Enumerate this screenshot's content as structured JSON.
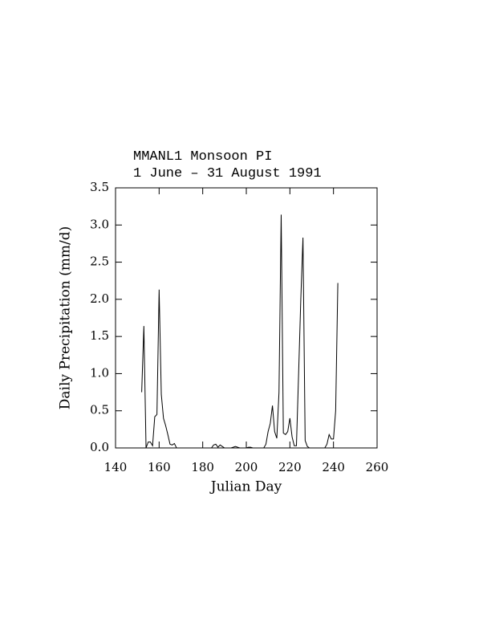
{
  "chart_data": {
    "type": "line",
    "title": "MMANL1 Monsoon PI",
    "subtitle": "1 June – 31 August 1991",
    "x_label": "Julian Day",
    "y_label": "Daily Precipitation (mm/d)",
    "xlim": [
      140,
      260
    ],
    "xticks": [
      140,
      160,
      180,
      200,
      220,
      240,
      260
    ],
    "ylim": [
      0,
      3.5
    ],
    "yticks": [
      {
        "value": 0,
        "label": "0.0"
      },
      0.5,
      {
        "value": 1,
        "label": "1.0"
      },
      1.5,
      {
        "value": 2,
        "label": "2.0"
      },
      2.5,
      {
        "value": 3,
        "label": "3.0"
      },
      3.5
    ],
    "grid": false,
    "x": [
      152,
      153,
      154,
      155,
      156,
      157,
      158,
      159,
      160,
      161,
      162,
      163,
      164,
      165,
      166,
      167,
      168,
      169,
      170,
      171,
      172,
      173,
      174,
      175,
      176,
      177,
      178,
      179,
      180,
      181,
      182,
      183,
      184,
      185,
      186,
      187,
      188,
      189,
      190,
      191,
      192,
      193,
      194,
      195,
      196,
      197,
      198,
      199,
      200,
      201,
      202,
      203,
      204,
      205,
      206,
      207,
      208,
      209,
      210,
      211,
      212,
      213,
      214,
      215,
      216,
      217,
      218,
      219,
      220,
      221,
      222,
      223,
      224,
      225,
      226,
      227,
      228,
      229,
      230,
      231,
      232,
      233,
      234,
      235,
      236,
      237,
      238,
      239,
      240,
      241,
      242
    ],
    "series": [
      {
        "color": "#000000",
        "values": [
          0.75,
          1.64,
          0,
          0.08,
          0.08,
          0.03,
          0.42,
          0.45,
          2.13,
          0.72,
          0.4,
          0.3,
          0.18,
          0.05,
          0.04,
          0.06,
          0,
          0,
          0,
          0,
          0,
          0,
          0,
          0,
          0,
          0,
          0,
          0,
          0,
          0,
          0,
          0,
          0,
          0.04,
          0.05,
          0.01,
          0.04,
          0.02,
          0,
          0,
          0,
          0,
          0.01,
          0.02,
          0.01,
          0,
          0,
          0,
          0,
          0.01,
          0.01,
          0,
          0,
          0,
          0,
          0,
          0,
          0.05,
          0.22,
          0.33,
          0.57,
          0.22,
          0.13,
          0.75,
          3.14,
          0.2,
          0.18,
          0.22,
          0.4,
          0.15,
          0.03,
          0.03,
          1.0,
          2.0,
          2.83,
          0.1,
          0.02,
          0,
          0,
          0,
          0,
          0,
          0,
          0,
          0,
          0.05,
          0.18,
          0.12,
          0.12,
          0.5,
          2.22
        ]
      }
    ]
  }
}
